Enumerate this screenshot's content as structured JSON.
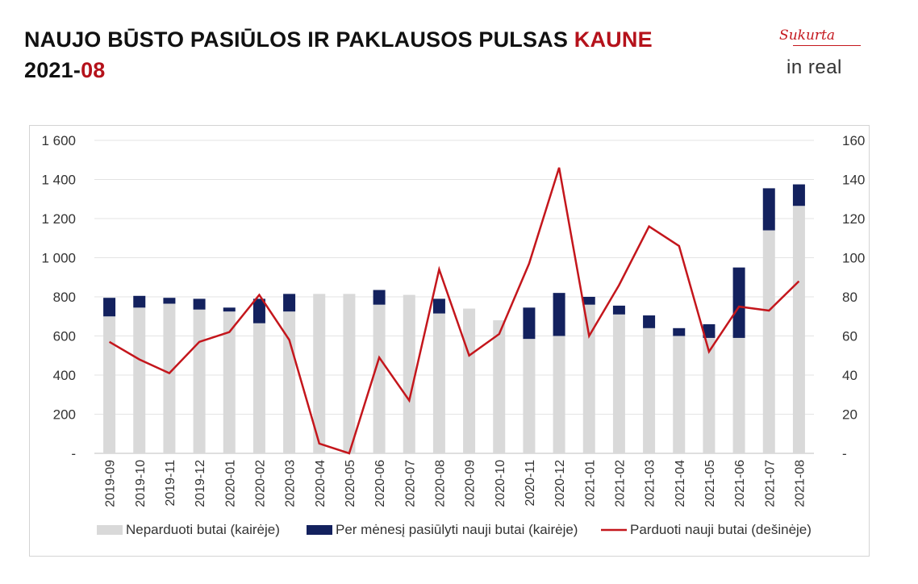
{
  "header": {
    "title_main": "NAUJO BŪSTO PASIŪLOS IR PAKLAUSOS PULSAS ",
    "title_city": "KAUNE",
    "date_prefix": "2021-",
    "date_accent": "08"
  },
  "brand": {
    "made_by": "Sukurta",
    "logo": "in real"
  },
  "colors": {
    "accent": "#b5121b",
    "unsold": "#d9d9d9",
    "offered": "#13215e",
    "sold": "#c4161c"
  },
  "chart_data": {
    "type": "bar",
    "stacked": true,
    "categories": [
      "2019-09",
      "2019-10",
      "2019-11",
      "2019-12",
      "2020-01",
      "2020-02",
      "2020-03",
      "2020-04",
      "2020-05",
      "2020-06",
      "2020-07",
      "2020-08",
      "2020-09",
      "2020-10",
      "2020-11",
      "2020-12",
      "2021-01",
      "2021-02",
      "2021-03",
      "2021-04",
      "2021-05",
      "2021-06",
      "2021-07",
      "2021-08"
    ],
    "series": [
      {
        "name": "Neparduoti butai (kairėje)",
        "kind": "bar",
        "axis": "left",
        "color": "#d9d9d9",
        "values": [
          700,
          745,
          765,
          735,
          725,
          665,
          725,
          815,
          815,
          760,
          810,
          715,
          740,
          680,
          585,
          600,
          760,
          710,
          640,
          600,
          590,
          590,
          1140,
          1265
        ]
      },
      {
        "name": "Per mėnesį pasiūlyti nauji butai (kairėje)",
        "kind": "bar",
        "axis": "left",
        "color": "#13215e",
        "values": [
          95,
          60,
          30,
          55,
          20,
          125,
          90,
          0,
          0,
          75,
          0,
          75,
          0,
          0,
          160,
          220,
          40,
          45,
          65,
          40,
          70,
          360,
          215,
          110
        ]
      },
      {
        "name": "Parduoti nauji butai (dešinėje)",
        "kind": "line",
        "axis": "right",
        "color": "#c4161c",
        "values": [
          57,
          48,
          41,
          57,
          62,
          81,
          58,
          5,
          0,
          49,
          27,
          94,
          50,
          61,
          97,
          146,
          60,
          86,
          116,
          106,
          52,
          75,
          73,
          88
        ]
      }
    ],
    "y_left": {
      "min": 0,
      "max": 1600,
      "ticks": [
        {
          "v": 0,
          "label": "-"
        },
        {
          "v": 200,
          "label": "200"
        },
        {
          "v": 400,
          "label": "400"
        },
        {
          "v": 600,
          "label": "600"
        },
        {
          "v": 800,
          "label": "800"
        },
        {
          "v": 1000,
          "label": "1 000"
        },
        {
          "v": 1200,
          "label": "1 200"
        },
        {
          "v": 1400,
          "label": "1 400"
        },
        {
          "v": 1600,
          "label": "1 600"
        }
      ]
    },
    "y_right": {
      "min": 0,
      "max": 160,
      "ticks": [
        {
          "v": 0,
          "label": "-"
        },
        {
          "v": 20,
          "label": "20"
        },
        {
          "v": 40,
          "label": "40"
        },
        {
          "v": 60,
          "label": "60"
        },
        {
          "v": 80,
          "label": "80"
        },
        {
          "v": 100,
          "label": "100"
        },
        {
          "v": 120,
          "label": "120"
        },
        {
          "v": 140,
          "label": "140"
        },
        {
          "v": 160,
          "label": "160"
        }
      ]
    },
    "grid": true,
    "legend_position": "bottom"
  }
}
